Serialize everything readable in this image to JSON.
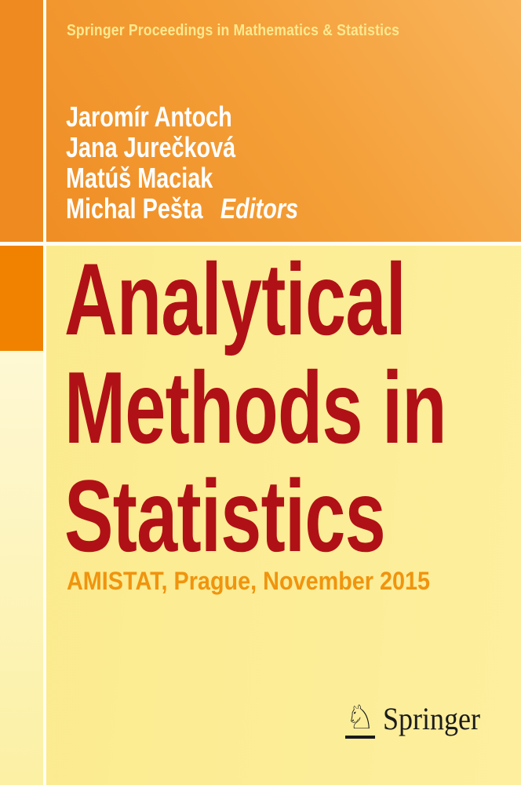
{
  "series": {
    "label": "Springer Proceedings in Mathematics & Statistics"
  },
  "editors": {
    "names": [
      "Jaromír Antoch",
      "Jana Jurečková",
      "Matúš Maciak",
      "Michal Pešta"
    ],
    "role_label": "Editors"
  },
  "title": {
    "full": "Analytical Methods in Statistics",
    "lines": [
      "Analytical",
      "Methods in",
      "Statistics"
    ]
  },
  "subtitle": "AMISTAT, Prague, November 2015",
  "publisher": {
    "name": "Springer",
    "logo_icon": "springer-horse-icon",
    "logo_glyph": "♘"
  },
  "colors": {
    "band_left": "#ee8b21",
    "band_right": "#f9b45c",
    "rail_top": "#ee8a1f",
    "rail_square": "#f08200",
    "rail_bottom_start": "#fef8d4",
    "rail_bottom_end": "#fcf0a4",
    "main_start": "#fbea8c",
    "main_end": "#fdef9e",
    "divider": "#fffdf2",
    "series_text": "#fce98f",
    "editors_text": "#ffffff",
    "title_text": "#b01116",
    "subtitle_text": "#f0940e",
    "logo_text": "#1b1b1b"
  }
}
